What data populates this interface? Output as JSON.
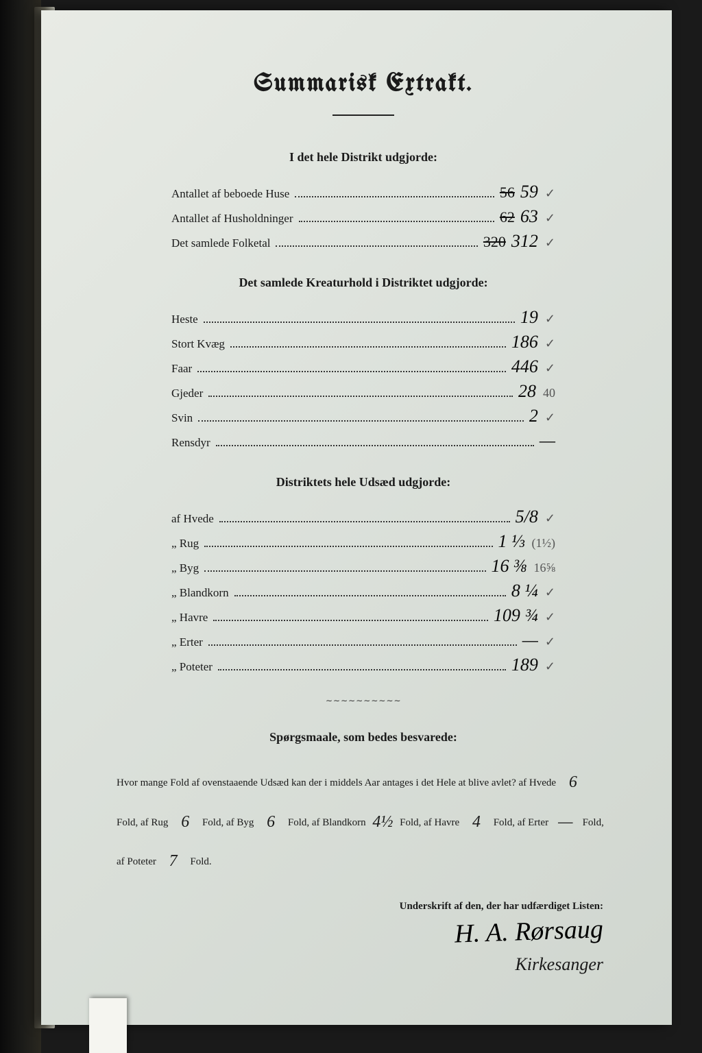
{
  "title": "Summarisk Extrakt.",
  "section1": {
    "heading": "I det hele Distrikt udgjorde:",
    "rows": [
      {
        "label": "Antallet af beboede Huse",
        "strike": "56",
        "value": "59",
        "note": "✓"
      },
      {
        "label": "Antallet af Husholdninger",
        "strike": "62",
        "value": "63",
        "note": "✓"
      },
      {
        "label": "Det samlede Folketal",
        "strike": "320",
        "value": "312",
        "note": "✓"
      }
    ]
  },
  "section2": {
    "heading": "Det samlede Kreaturhold i Distriktet udgjorde:",
    "rows": [
      {
        "label": "Heste",
        "value": "19",
        "note": "✓"
      },
      {
        "label": "Stort Kvæg",
        "value": "186",
        "note": "✓"
      },
      {
        "label": "Faar",
        "value": "446",
        "note": "✓"
      },
      {
        "label": "Gjeder",
        "value": "28",
        "note": "40"
      },
      {
        "label": "Svin",
        "value": "2",
        "note": "✓"
      },
      {
        "label": "Rensdyr",
        "value": "—",
        "note": ""
      }
    ]
  },
  "section3": {
    "heading": "Distriktets hele Udsæd udgjorde:",
    "rows": [
      {
        "label": "af Hvede",
        "value": "5/8",
        "note": "✓"
      },
      {
        "label": "„ Rug",
        "value": "1 ⅓",
        "note": "(1½)"
      },
      {
        "label": "„ Byg",
        "value": "16 ⅜",
        "note": "16⅝"
      },
      {
        "label": "„ Blandkorn",
        "value": "8 ¼",
        "note": "✓"
      },
      {
        "label": "„ Havre",
        "value": "109 ¾",
        "note": "✓"
      },
      {
        "label": "„ Erter",
        "value": "—",
        "note": "✓"
      },
      {
        "label": "„ Poteter",
        "value": "189",
        "note": "✓"
      }
    ]
  },
  "question": {
    "heading": "Spørgsmaale, som bedes besvarede:",
    "intro": "Hvor mange Fold af ovenstaaende Udsæd kan der i middels Aar antages i det Hele at blive avlet?",
    "parts": [
      {
        "label": "af Hvede",
        "value": "6",
        "suffix": "Fold,"
      },
      {
        "label": "af Rug",
        "value": "6",
        "suffix": "Fold,"
      },
      {
        "label": "af Byg",
        "value": "6",
        "suffix": "Fold,"
      },
      {
        "label": "af Blandkorn",
        "value": "4½",
        "suffix": "Fold,"
      },
      {
        "label": "af Havre",
        "value": "4",
        "suffix": "Fold,"
      },
      {
        "label": "af Erter",
        "value": "—",
        "suffix": "Fold,"
      },
      {
        "label": "af Poteter",
        "value": "7",
        "suffix": "Fold."
      }
    ]
  },
  "signature": {
    "label": "Underskrift af den, der har udfærdiget Listen:",
    "name": "H. A. Rørsaug",
    "title": "Kirkesanger"
  }
}
